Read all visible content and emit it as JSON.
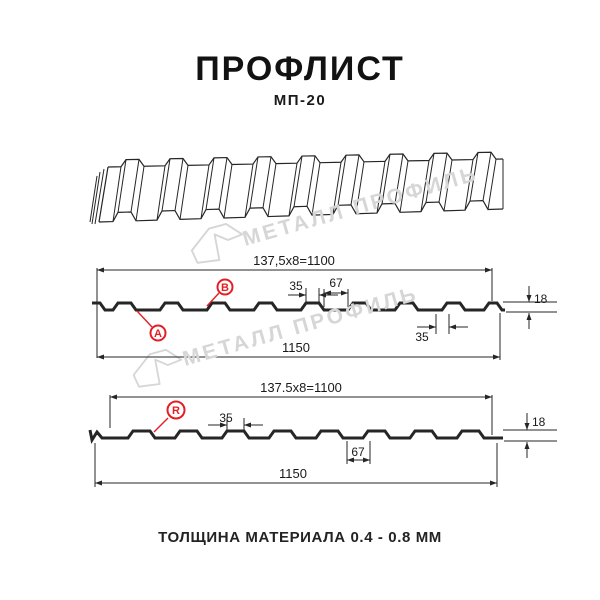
{
  "header": {
    "title": "ПРОФЛИСТ",
    "subtitle": "МП-20"
  },
  "footer": {
    "note": "ТОЛЩИНА МАТЕРИАЛА 0.4 - 0.8 ММ"
  },
  "watermark": {
    "text": "МЕТАЛЛ ПРОФИЛЬ"
  },
  "colors": {
    "ink": "#1a1a1a",
    "line": "#262626",
    "accent_red": "#e31e24",
    "watermark_gray": "#d6d6d6",
    "background": "#ffffff"
  },
  "profile_3d": {
    "description": "perspective-view-of-corrugated-sheet",
    "rib_count": 9
  },
  "sections": [
    {
      "name": "side-A-cross-section",
      "top_dim": "137,5x8=1100",
      "rib_top_width": "35",
      "valley_width": "67",
      "height": "18",
      "rib_base_width": "35",
      "overall_width": "1150",
      "point_labels": [
        "B",
        "A"
      ]
    },
    {
      "name": "side-R-cross-section",
      "top_dim": "137.5x8=1100",
      "rib_top_width": "35",
      "valley_width": "67",
      "height": "18",
      "overall_width": "1150",
      "point_labels": [
        "R"
      ]
    }
  ]
}
